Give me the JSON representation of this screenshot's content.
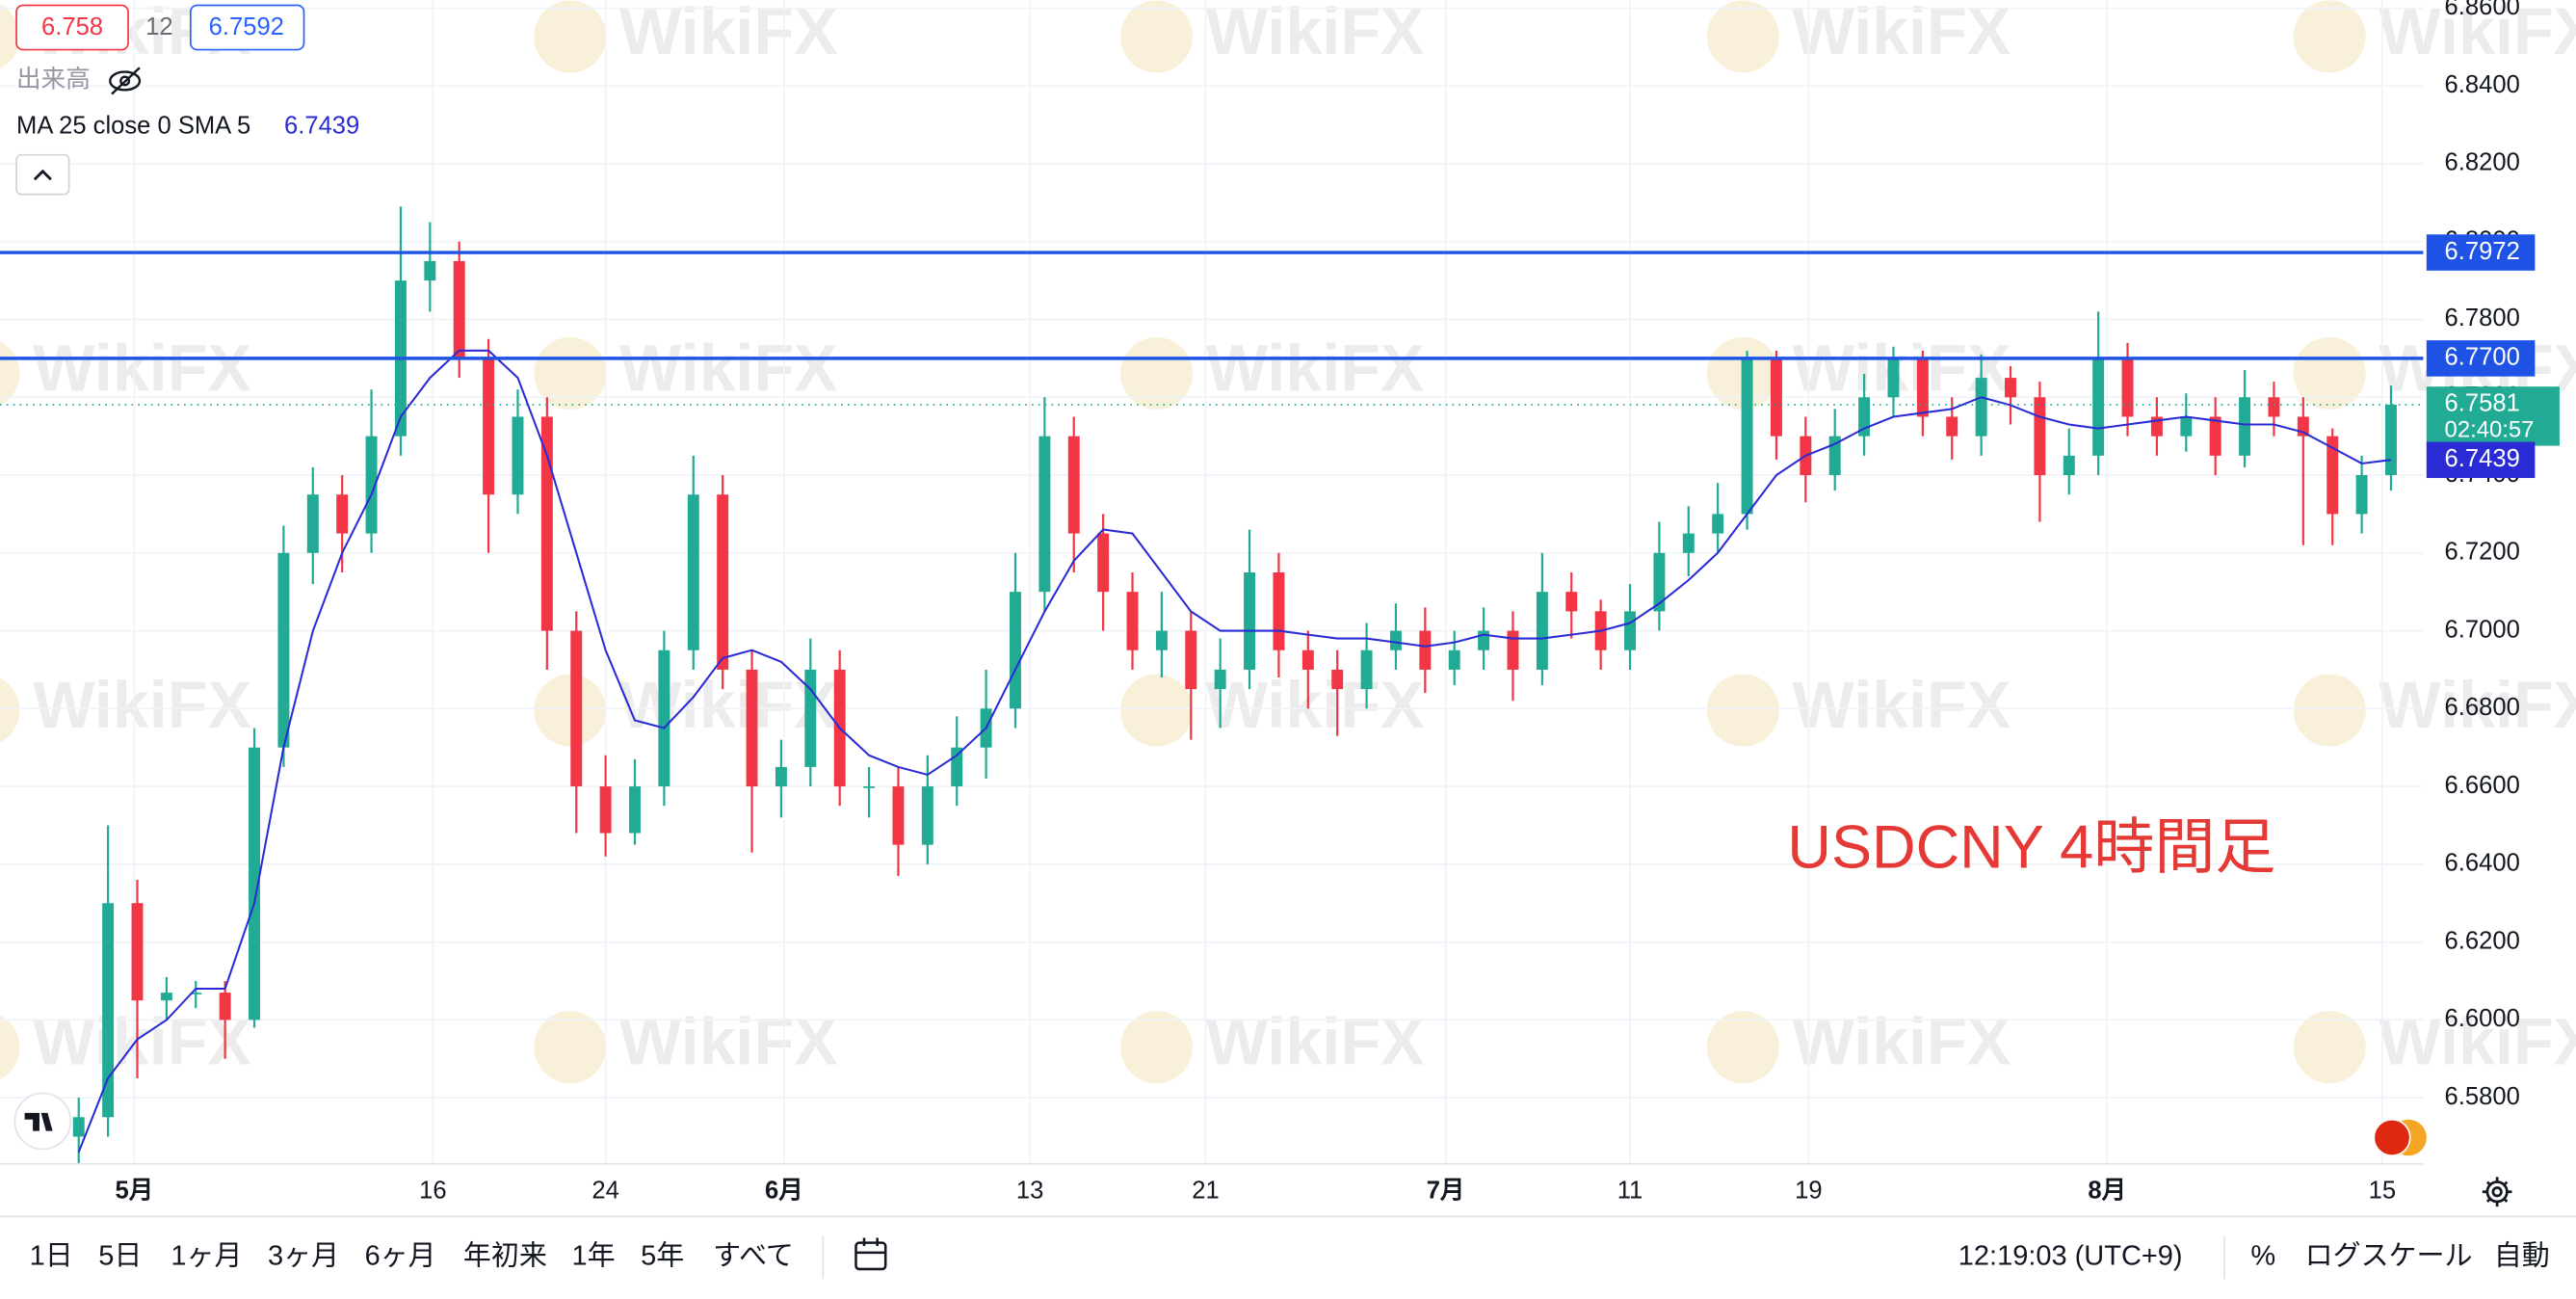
{
  "chart_data": {
    "type": "candlestick",
    "annotation": "USDCNY 4時間足",
    "up_color": "#22ab94",
    "down_color": "#f23645",
    "x": [
      0,
      1,
      2,
      3,
      4,
      5,
      6,
      7,
      8,
      9,
      10,
      11,
      12,
      13,
      14,
      15,
      16,
      17,
      18,
      19,
      20,
      21,
      22,
      23,
      24,
      25,
      26,
      27,
      28,
      29,
      30,
      31,
      32,
      33,
      34,
      35,
      36,
      37,
      38,
      39,
      40,
      41,
      42,
      43,
      44,
      45,
      46,
      47,
      48,
      49,
      50,
      51,
      52,
      53,
      54,
      55,
      56,
      57,
      58,
      59,
      60,
      61,
      62,
      63,
      64,
      65,
      66,
      67,
      68,
      69,
      70,
      71,
      72,
      73,
      74,
      75,
      76,
      77,
      78,
      79
    ],
    "open": [
      6.57,
      6.575,
      6.63,
      6.605,
      6.607,
      6.607,
      6.6,
      6.67,
      6.72,
      6.735,
      6.725,
      6.75,
      6.79,
      6.795,
      6.77,
      6.735,
      6.755,
      6.7,
      6.66,
      6.648,
      6.66,
      6.695,
      6.735,
      6.69,
      6.66,
      6.665,
      6.69,
      6.66,
      6.66,
      6.645,
      6.66,
      6.67,
      6.68,
      6.71,
      6.75,
      6.725,
      6.71,
      6.695,
      6.7,
      6.685,
      6.69,
      6.715,
      6.695,
      6.69,
      6.685,
      6.695,
      6.7,
      6.69,
      6.695,
      6.7,
      6.69,
      6.71,
      6.705,
      6.695,
      6.705,
      6.72,
      6.725,
      6.73,
      6.77,
      6.75,
      6.74,
      6.75,
      6.76,
      6.77,
      6.755,
      6.75,
      6.765,
      6.76,
      6.74,
      6.745,
      6.77,
      6.755,
      6.75,
      6.755,
      6.745,
      6.76,
      6.755,
      6.75,
      6.73,
      6.74
    ],
    "high": [
      6.58,
      6.65,
      6.636,
      6.611,
      6.61,
      6.61,
      6.675,
      6.727,
      6.742,
      6.74,
      6.762,
      6.809,
      6.805,
      6.8,
      6.775,
      6.762,
      6.76,
      6.705,
      6.668,
      6.667,
      6.7,
      6.745,
      6.74,
      6.695,
      6.672,
      6.698,
      6.695,
      6.665,
      6.665,
      6.668,
      6.678,
      6.69,
      6.72,
      6.76,
      6.755,
      6.73,
      6.715,
      6.71,
      6.705,
      6.698,
      6.726,
      6.72,
      6.7,
      6.695,
      6.702,
      6.707,
      6.706,
      6.7,
      6.706,
      6.705,
      6.72,
      6.715,
      6.708,
      6.712,
      6.728,
      6.732,
      6.738,
      6.772,
      6.772,
      6.755,
      6.757,
      6.766,
      6.773,
      6.772,
      6.76,
      6.771,
      6.768,
      6.764,
      6.752,
      6.782,
      6.774,
      6.76,
      6.761,
      6.76,
      6.767,
      6.764,
      6.76,
      6.752,
      6.745,
      6.763
    ],
    "low": [
      6.563,
      6.57,
      6.585,
      6.6,
      6.603,
      6.59,
      6.598,
      6.665,
      6.712,
      6.715,
      6.72,
      6.745,
      6.782,
      6.765,
      6.72,
      6.73,
      6.69,
      6.648,
      6.642,
      6.645,
      6.655,
      6.69,
      6.685,
      6.643,
      6.652,
      6.66,
      6.655,
      6.652,
      6.637,
      6.64,
      6.655,
      6.662,
      6.675,
      6.705,
      6.715,
      6.7,
      6.69,
      6.688,
      6.672,
      6.675,
      6.685,
      6.688,
      6.68,
      6.673,
      6.68,
      6.69,
      6.684,
      6.686,
      6.69,
      6.682,
      6.686,
      6.698,
      6.69,
      6.69,
      6.7,
      6.714,
      6.72,
      6.726,
      6.744,
      6.733,
      6.736,
      6.745,
      6.755,
      6.75,
      6.744,
      6.745,
      6.753,
      6.728,
      6.735,
      6.74,
      6.75,
      6.745,
      6.746,
      6.74,
      6.742,
      6.75,
      6.722,
      6.722,
      6.725,
      6.736
    ],
    "close": [
      6.575,
      6.63,
      6.605,
      6.607,
      6.607,
      6.6,
      6.67,
      6.72,
      6.735,
      6.725,
      6.75,
      6.79,
      6.795,
      6.77,
      6.735,
      6.755,
      6.7,
      6.66,
      6.648,
      6.66,
      6.695,
      6.735,
      6.69,
      6.66,
      6.665,
      6.69,
      6.66,
      6.66,
      6.645,
      6.66,
      6.67,
      6.68,
      6.71,
      6.75,
      6.725,
      6.71,
      6.695,
      6.7,
      6.685,
      6.69,
      6.715,
      6.695,
      6.69,
      6.685,
      6.695,
      6.7,
      6.69,
      6.695,
      6.7,
      6.69,
      6.71,
      6.705,
      6.695,
      6.705,
      6.72,
      6.725,
      6.73,
      6.77,
      6.75,
      6.74,
      6.75,
      6.76,
      6.77,
      6.755,
      6.75,
      6.765,
      6.76,
      6.74,
      6.745,
      6.77,
      6.755,
      6.75,
      6.755,
      6.745,
      6.76,
      6.755,
      6.75,
      6.73,
      6.74,
      6.7581
    ],
    "ma": {
      "color": "#2b2bd6",
      "values": [
        6.566,
        6.585,
        6.595,
        6.6,
        6.608,
        6.608,
        6.63,
        6.67,
        6.7,
        6.72,
        6.735,
        6.755,
        6.765,
        6.772,
        6.772,
        6.765,
        6.745,
        6.72,
        6.695,
        6.677,
        6.675,
        6.683,
        6.693,
        6.695,
        6.692,
        6.685,
        6.675,
        6.668,
        6.665,
        6.663,
        6.668,
        6.675,
        6.69,
        6.705,
        6.718,
        6.726,
        6.725,
        6.715,
        6.705,
        6.7,
        6.7,
        6.7,
        6.699,
        6.698,
        6.698,
        6.697,
        6.696,
        6.697,
        6.699,
        6.698,
        6.698,
        6.699,
        6.7,
        6.702,
        6.707,
        6.713,
        6.72,
        6.73,
        6.74,
        6.745,
        6.748,
        6.752,
        6.755,
        6.756,
        6.757,
        6.76,
        6.758,
        6.755,
        6.753,
        6.752,
        6.753,
        6.754,
        6.755,
        6.754,
        6.753,
        6.753,
        6.751,
        6.747,
        6.743,
        6.7439
      ]
    },
    "hlines": [
      {
        "value": 6.7972,
        "color": "#1e53e5"
      },
      {
        "value": 6.77,
        "label": "6.7700",
        "color": "#1e53e5"
      }
    ],
    "countdown": "02:40:57",
    "xlim": [
      -2.69,
      80.1
    ],
    "xticks": [
      {
        "value": 1.9,
        "label": "5月"
      },
      {
        "value": 12.1,
        "label": "16"
      },
      {
        "value": 18.0,
        "label": "24"
      },
      {
        "value": 24.1,
        "label": "6月"
      },
      {
        "value": 32.5,
        "label": "13"
      },
      {
        "value": 38.5,
        "label": "21"
      },
      {
        "value": 46.7,
        "label": "7月"
      },
      {
        "value": 53.0,
        "label": "11"
      },
      {
        "value": 59.1,
        "label": "19"
      },
      {
        "value": 69.3,
        "label": "8月"
      },
      {
        "value": 78.7,
        "label": "15"
      }
    ],
    "ylim": [
      6.563,
      6.862
    ],
    "yticks": [
      {
        "value": 6.58,
        "label": "6.5800"
      },
      {
        "value": 6.6,
        "label": "6.6000"
      },
      {
        "value": 6.62,
        "label": "6.6200"
      },
      {
        "value": 6.64,
        "label": "6.6400"
      },
      {
        "value": 6.66,
        "label": "6.6600"
      },
      {
        "value": 6.68,
        "label": "6.6800"
      },
      {
        "value": 6.7,
        "label": "6.7000"
      },
      {
        "value": 6.72,
        "label": "6.7200"
      },
      {
        "value": 6.74,
        "label": "6.7400"
      },
      {
        "value": 6.76,
        "label": "6.7600"
      },
      {
        "value": 6.78,
        "label": "6.7800"
      },
      {
        "value": 6.8,
        "label": "6.8000"
      },
      {
        "value": 6.82,
        "label": "6.8200"
      },
      {
        "value": 6.84,
        "label": "6.8400"
      },
      {
        "value": 6.86,
        "label": "6.8600"
      }
    ],
    "grid": true
  },
  "legend": {
    "bid": 6.758,
    "spread": 12,
    "ask": 6.7592,
    "volume": "出来高",
    "ma_label": "MA 25 close 0 SMA 5"
  },
  "watermark": "WikiFX",
  "toolbar": {
    "ranges": [
      "1日",
      "5日",
      "1ヶ月",
      "3ヶ月",
      "6ヶ月",
      "年初来",
      "1年",
      "5年",
      "すべて"
    ],
    "time": "12:19:03 (UTC+9)",
    "percent": "%",
    "log": "ログスケール",
    "auto": "自動"
  }
}
